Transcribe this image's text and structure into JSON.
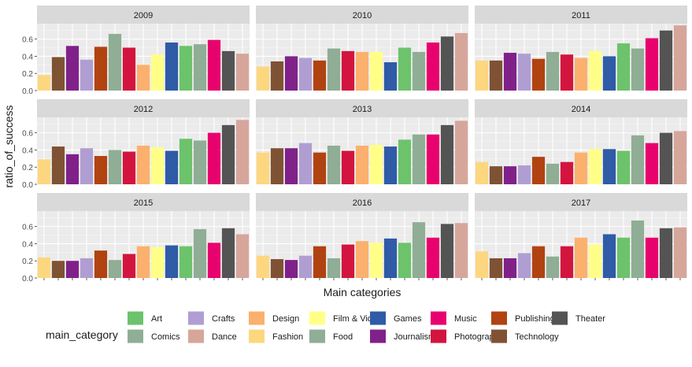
{
  "chart_data": {
    "type": "bar",
    "facet_by": "year",
    "xlabel": "Main categories",
    "ylabel": "ratio_of_success",
    "ylim": [
      0,
      0.78
    ],
    "yticks": [
      0.0,
      0.2,
      0.4,
      0.6
    ],
    "ytick_labels": [
      "0.0",
      "0.2",
      "0.4",
      "0.6"
    ],
    "grid": true,
    "legend_position": "bottom",
    "legend_title": "main_category",
    "legend": [
      {
        "name": "Art",
        "color": "#6CC36B"
      },
      {
        "name": "Comics",
        "color": "#8FAE95"
      },
      {
        "name": "Crafts",
        "color": "#B09ED3"
      },
      {
        "name": "Dance",
        "color": "#D7A69B"
      },
      {
        "name": "Design",
        "color": "#FBB06E"
      },
      {
        "name": "Fashion",
        "color": "#FDD77F"
      },
      {
        "name": "Film & Video",
        "color": "#FFFF88"
      },
      {
        "name": "Food",
        "color": "#8FAE95"
      },
      {
        "name": "Games",
        "color": "#2F5BA7"
      },
      {
        "name": "Journalism",
        "color": "#80218A"
      },
      {
        "name": "Music",
        "color": "#E8026E"
      },
      {
        "name": "Photography",
        "color": "#D3143F"
      },
      {
        "name": "Publishing",
        "color": "#B14311"
      },
      {
        "name": "Technology",
        "color": "#7F5233"
      },
      {
        "name": "Theater",
        "color": "#545454"
      }
    ],
    "bar_colors": [
      "#FDD77F",
      "#7F5233",
      "#80218A",
      "#B09ED3",
      "#B14311",
      "#8FAE95",
      "#D3143F",
      "#FBB06E",
      "#FFFF88",
      "#2F5BA7",
      "#6CC36B",
      "#8FAE95",
      "#E8026E",
      "#545454",
      "#D7A69B"
    ],
    "panels": [
      {
        "year": "2009",
        "bars": [
          {
            "category": "Fashion",
            "value": 0.18
          },
          {
            "category": "Technology",
            "value": 0.39
          },
          {
            "category": "Journalism",
            "value": 0.52
          },
          {
            "category": "Crafts",
            "value": 0.36
          },
          {
            "category": "Publishing",
            "value": 0.51
          },
          {
            "category": "Food",
            "value": 0.66
          },
          {
            "category": "Photography",
            "value": 0.5
          },
          {
            "category": "Design",
            "value": 0.3
          },
          {
            "category": "Film & Video",
            "value": 0.42
          },
          {
            "category": "Games",
            "value": 0.56
          },
          {
            "category": "Art",
            "value": 0.52
          },
          {
            "category": "Comics",
            "value": 0.54
          },
          {
            "category": "Music",
            "value": 0.59
          },
          {
            "category": "Theater",
            "value": 0.46
          },
          {
            "category": "Dance",
            "value": 0.43
          }
        ]
      },
      {
        "year": "2010",
        "bars": [
          {
            "category": "Fashion",
            "value": 0.28
          },
          {
            "category": "Technology",
            "value": 0.34
          },
          {
            "category": "Journalism",
            "value": 0.4
          },
          {
            "category": "Crafts",
            "value": 0.38
          },
          {
            "category": "Publishing",
            "value": 0.35
          },
          {
            "category": "Food",
            "value": 0.49
          },
          {
            "category": "Photography",
            "value": 0.46
          },
          {
            "category": "Design",
            "value": 0.45
          },
          {
            "category": "Film & Video",
            "value": 0.45
          },
          {
            "category": "Games",
            "value": 0.33
          },
          {
            "category": "Art",
            "value": 0.5
          },
          {
            "category": "Comics",
            "value": 0.45
          },
          {
            "category": "Music",
            "value": 0.56
          },
          {
            "category": "Theater",
            "value": 0.63
          },
          {
            "category": "Dance",
            "value": 0.67
          }
        ]
      },
      {
        "year": "2011",
        "bars": [
          {
            "category": "Fashion",
            "value": 0.35
          },
          {
            "category": "Technology",
            "value": 0.35
          },
          {
            "category": "Journalism",
            "value": 0.44
          },
          {
            "category": "Crafts",
            "value": 0.43
          },
          {
            "category": "Publishing",
            "value": 0.37
          },
          {
            "category": "Food",
            "value": 0.45
          },
          {
            "category": "Photography",
            "value": 0.42
          },
          {
            "category": "Design",
            "value": 0.38
          },
          {
            "category": "Film & Video",
            "value": 0.46
          },
          {
            "category": "Games",
            "value": 0.4
          },
          {
            "category": "Art",
            "value": 0.55
          },
          {
            "category": "Comics",
            "value": 0.49
          },
          {
            "category": "Music",
            "value": 0.61
          },
          {
            "category": "Theater",
            "value": 0.7
          },
          {
            "category": "Dance",
            "value": 0.76
          }
        ]
      },
      {
        "year": "2012",
        "bars": [
          {
            "category": "Fashion",
            "value": 0.29
          },
          {
            "category": "Technology",
            "value": 0.44
          },
          {
            "category": "Journalism",
            "value": 0.35
          },
          {
            "category": "Crafts",
            "value": 0.42
          },
          {
            "category": "Publishing",
            "value": 0.33
          },
          {
            "category": "Food",
            "value": 0.4
          },
          {
            "category": "Photography",
            "value": 0.38
          },
          {
            "category": "Design",
            "value": 0.45
          },
          {
            "category": "Film & Video",
            "value": 0.43
          },
          {
            "category": "Games",
            "value": 0.39
          },
          {
            "category": "Art",
            "value": 0.53
          },
          {
            "category": "Comics",
            "value": 0.51
          },
          {
            "category": "Music",
            "value": 0.6
          },
          {
            "category": "Theater",
            "value": 0.69
          },
          {
            "category": "Dance",
            "value": 0.75
          }
        ]
      },
      {
        "year": "2013",
        "bars": [
          {
            "category": "Fashion",
            "value": 0.37
          },
          {
            "category": "Technology",
            "value": 0.42
          },
          {
            "category": "Journalism",
            "value": 0.42
          },
          {
            "category": "Crafts",
            "value": 0.48
          },
          {
            "category": "Publishing",
            "value": 0.37
          },
          {
            "category": "Food",
            "value": 0.45
          },
          {
            "category": "Photography",
            "value": 0.39
          },
          {
            "category": "Design",
            "value": 0.45
          },
          {
            "category": "Film & Video",
            "value": 0.46
          },
          {
            "category": "Games",
            "value": 0.44
          },
          {
            "category": "Art",
            "value": 0.52
          },
          {
            "category": "Comics",
            "value": 0.58
          },
          {
            "category": "Music",
            "value": 0.58
          },
          {
            "category": "Theater",
            "value": 0.69
          },
          {
            "category": "Dance",
            "value": 0.74
          }
        ]
      },
      {
        "year": "2014",
        "bars": [
          {
            "category": "Fashion",
            "value": 0.26
          },
          {
            "category": "Technology",
            "value": 0.21
          },
          {
            "category": "Journalism",
            "value": 0.21
          },
          {
            "category": "Crafts",
            "value": 0.22
          },
          {
            "category": "Publishing",
            "value": 0.32
          },
          {
            "category": "Food",
            "value": 0.24
          },
          {
            "category": "Photography",
            "value": 0.26
          },
          {
            "category": "Design",
            "value": 0.37
          },
          {
            "category": "Film & Video",
            "value": 0.41
          },
          {
            "category": "Games",
            "value": 0.41
          },
          {
            "category": "Art",
            "value": 0.39
          },
          {
            "category": "Comics",
            "value": 0.57
          },
          {
            "category": "Music",
            "value": 0.48
          },
          {
            "category": "Theater",
            "value": 0.6
          },
          {
            "category": "Dance",
            "value": 0.62
          }
        ]
      },
      {
        "year": "2015",
        "bars": [
          {
            "category": "Fashion",
            "value": 0.24
          },
          {
            "category": "Technology",
            "value": 0.2
          },
          {
            "category": "Journalism",
            "value": 0.2
          },
          {
            "category": "Crafts",
            "value": 0.23
          },
          {
            "category": "Publishing",
            "value": 0.32
          },
          {
            "category": "Food",
            "value": 0.21
          },
          {
            "category": "Photography",
            "value": 0.28
          },
          {
            "category": "Design",
            "value": 0.37
          },
          {
            "category": "Film & Video",
            "value": 0.36
          },
          {
            "category": "Games",
            "value": 0.38
          },
          {
            "category": "Art",
            "value": 0.37
          },
          {
            "category": "Comics",
            "value": 0.57
          },
          {
            "category": "Music",
            "value": 0.41
          },
          {
            "category": "Theater",
            "value": 0.58
          },
          {
            "category": "Dance",
            "value": 0.51
          }
        ]
      },
      {
        "year": "2016",
        "bars": [
          {
            "category": "Fashion",
            "value": 0.26
          },
          {
            "category": "Technology",
            "value": 0.22
          },
          {
            "category": "Journalism",
            "value": 0.21
          },
          {
            "category": "Crafts",
            "value": 0.26
          },
          {
            "category": "Publishing",
            "value": 0.37
          },
          {
            "category": "Food",
            "value": 0.23
          },
          {
            "category": "Photography",
            "value": 0.39
          },
          {
            "category": "Design",
            "value": 0.43
          },
          {
            "category": "Film & Video",
            "value": 0.41
          },
          {
            "category": "Games",
            "value": 0.46
          },
          {
            "category": "Art",
            "value": 0.41
          },
          {
            "category": "Comics",
            "value": 0.65
          },
          {
            "category": "Music",
            "value": 0.47
          },
          {
            "category": "Theater",
            "value": 0.63
          },
          {
            "category": "Dance",
            "value": 0.64
          }
        ]
      },
      {
        "year": "2017",
        "bars": [
          {
            "category": "Fashion",
            "value": 0.31
          },
          {
            "category": "Technology",
            "value": 0.23
          },
          {
            "category": "Journalism",
            "value": 0.23
          },
          {
            "category": "Crafts",
            "value": 0.29
          },
          {
            "category": "Publishing",
            "value": 0.37
          },
          {
            "category": "Food",
            "value": 0.25
          },
          {
            "category": "Photography",
            "value": 0.37
          },
          {
            "category": "Design",
            "value": 0.47
          },
          {
            "category": "Film & Video",
            "value": 0.39
          },
          {
            "category": "Games",
            "value": 0.51
          },
          {
            "category": "Art",
            "value": 0.47
          },
          {
            "category": "Comics",
            "value": 0.67
          },
          {
            "category": "Music",
            "value": 0.47
          },
          {
            "category": "Theater",
            "value": 0.58
          },
          {
            "category": "Dance",
            "value": 0.59
          }
        ]
      }
    ]
  }
}
